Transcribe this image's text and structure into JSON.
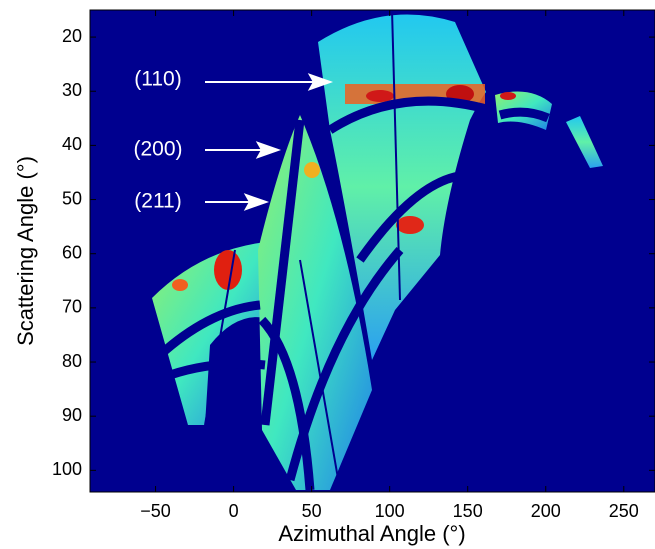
{
  "chart_data": {
    "type": "image",
    "xlabel": "Azimuthal Angle  (°)",
    "ylabel": "Scattering Angle  (°)",
    "xlim": [
      -92,
      270
    ],
    "ylim": [
      15,
      104
    ],
    "yinvert": true,
    "xticks": [
      {
        "value": -50,
        "label": "−50"
      },
      0,
      50,
      100,
      150,
      200,
      250
    ],
    "yticks": [
      20,
      30,
      40,
      50,
      60,
      70,
      80,
      90,
      100
    ],
    "annotations": [
      "(110)",
      "(200)",
      "(211)"
    ],
    "background": "#00008f"
  }
}
